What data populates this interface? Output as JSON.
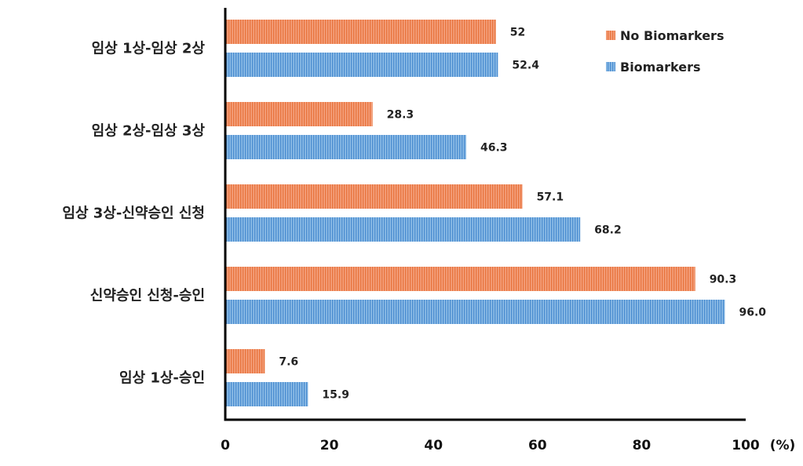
{
  "chart_data": {
    "type": "bar",
    "orientation": "horizontal",
    "categories": [
      "임상 1상-임상 2상",
      "임상 2상-임상 3상",
      "임상 3상-신약승인 신청",
      "신약승인 신청-승인",
      "임상 1상-승인"
    ],
    "series": [
      {
        "name": "No Biomarkers",
        "values": [
          52,
          28.3,
          57.1,
          90.3,
          7.6
        ],
        "labels": [
          "52",
          "28.3",
          "57.1",
          "90.3",
          "7.6"
        ],
        "color": "#F08A5D"
      },
      {
        "name": "Biomarkers",
        "values": [
          52.4,
          46.3,
          68.2,
          96.0,
          15.9
        ],
        "labels": [
          "52.4",
          "46.3",
          "68.2",
          "96.0",
          "15.9"
        ],
        "color": "#5B9BD5"
      }
    ],
    "x_ticks": [
      "0",
      "20",
      "40",
      "60",
      "80",
      "100"
    ],
    "x_unit": "(%)",
    "xlim": [
      0,
      100
    ],
    "grid": false,
    "legend_position": "top-right"
  }
}
